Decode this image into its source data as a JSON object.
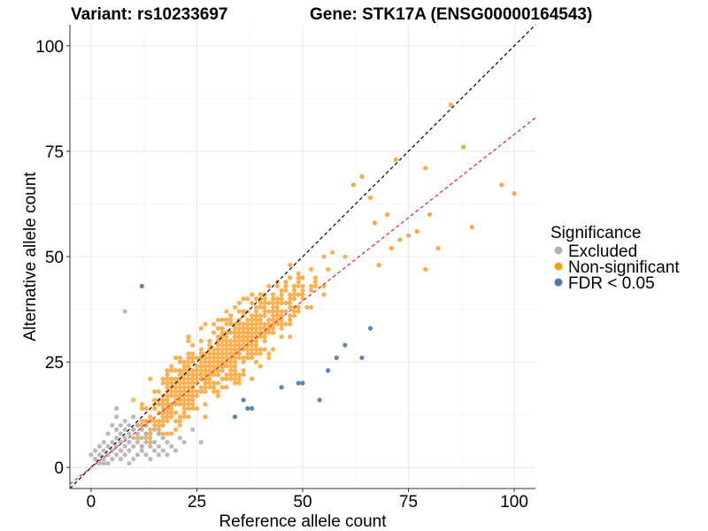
{
  "chart_data": {
    "type": "scatter",
    "title_left": "Variant: rs10233697",
    "title_right": "Gene: STK17A (ENSG00000164543)",
    "xlabel": "Reference allele count",
    "ylabel": "Alternative allele count",
    "xlim": [
      -5,
      105
    ],
    "ylim": [
      -5,
      105
    ],
    "x_ticks": [
      0,
      25,
      50,
      75,
      100
    ],
    "y_ticks": [
      0,
      25,
      50,
      75,
      100
    ],
    "grid": true,
    "legend": {
      "title": "Significance",
      "position": "right",
      "entries": [
        {
          "label": "Excluded",
          "color": "#b3b3b3"
        },
        {
          "label": "Non-significant",
          "color": "#ff9a1f"
        },
        {
          "label": "FDR < 0.05",
          "color": "#4a78b0"
        }
      ]
    },
    "reference_lines": [
      {
        "name": "identity",
        "slope": 1,
        "intercept": 0,
        "color": "#000000",
        "style": "dashed"
      },
      {
        "name": "fit",
        "slope": 0.79,
        "intercept": 0,
        "color": "#e8201e",
        "style": "dashed"
      }
    ],
    "series": [
      {
        "name": "Excluded",
        "color": "#b3b3b3",
        "points": [
          [
            0,
            3
          ],
          [
            1,
            2
          ],
          [
            1,
            4
          ],
          [
            2,
            1
          ],
          [
            2,
            3
          ],
          [
            2,
            5
          ],
          [
            3,
            1
          ],
          [
            3,
            2
          ],
          [
            3,
            4
          ],
          [
            3,
            6
          ],
          [
            4,
            1
          ],
          [
            4,
            3
          ],
          [
            4,
            5
          ],
          [
            4,
            8
          ],
          [
            5,
            2
          ],
          [
            5,
            4
          ],
          [
            5,
            6
          ],
          [
            5,
            10
          ],
          [
            6,
            3
          ],
          [
            6,
            5
          ],
          [
            6,
            7
          ],
          [
            6,
            9
          ],
          [
            6,
            12
          ],
          [
            7,
            2
          ],
          [
            7,
            4
          ],
          [
            7,
            6
          ],
          [
            7,
            8
          ],
          [
            7,
            10
          ],
          [
            8,
            3
          ],
          [
            8,
            5
          ],
          [
            8,
            7
          ],
          [
            8,
            9
          ],
          [
            8,
            11
          ],
          [
            9,
            1
          ],
          [
            9,
            4
          ],
          [
            9,
            6
          ],
          [
            9,
            8
          ],
          [
            9,
            10
          ],
          [
            10,
            2
          ],
          [
            10,
            5
          ],
          [
            10,
            7
          ],
          [
            10,
            9
          ],
          [
            10,
            12
          ],
          [
            11,
            3
          ],
          [
            11,
            6
          ],
          [
            11,
            8
          ],
          [
            11,
            10
          ],
          [
            12,
            4
          ],
          [
            12,
            5
          ],
          [
            12,
            7
          ],
          [
            12,
            9
          ],
          [
            13,
            3
          ],
          [
            13,
            6
          ],
          [
            13,
            8
          ],
          [
            13,
            10
          ],
          [
            14,
            2
          ],
          [
            14,
            5
          ],
          [
            14,
            7
          ],
          [
            15,
            4
          ],
          [
            15,
            6
          ],
          [
            15,
            9
          ],
          [
            16,
            3
          ],
          [
            16,
            5
          ],
          [
            16,
            8
          ],
          [
            17,
            4
          ],
          [
            17,
            7
          ],
          [
            18,
            3
          ],
          [
            18,
            6
          ],
          [
            19,
            5
          ],
          [
            20,
            4
          ],
          [
            21,
            7
          ],
          [
            22,
            6
          ],
          [
            24,
            9
          ],
          [
            26,
            6
          ],
          [
            6,
            14
          ],
          [
            8,
            37
          ]
        ]
      },
      {
        "name": "FDR < 0.05",
        "color": "#4a78b0",
        "points": [
          [
            12,
            43
          ],
          [
            34,
            12
          ],
          [
            36,
            16
          ],
          [
            37,
            14
          ],
          [
            38,
            14
          ],
          [
            45,
            19
          ],
          [
            49,
            20
          ],
          [
            50,
            20
          ],
          [
            54,
            16
          ],
          [
            56,
            23
          ],
          [
            58,
            26
          ],
          [
            60,
            29
          ],
          [
            64,
            26
          ],
          [
            66,
            33
          ]
        ]
      }
    ],
    "nonsignificant_notes": "Orange points follow a dense cloud roughly 10<x<70 with y around 0.8*x; outliers at [85,86],[88,76],[97,67],[100,65],[90,57],[82,52],[79,71],[79,47],[72,73],[73,54],[67,58]"
  }
}
